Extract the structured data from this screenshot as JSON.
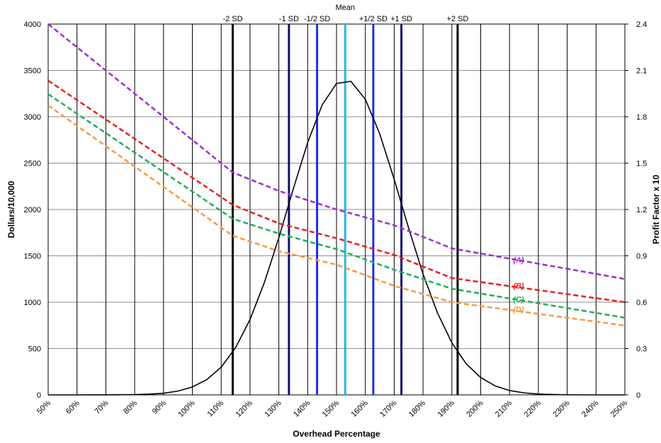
{
  "chart_data": {
    "type": "line",
    "x_label": "Overhead Percentage",
    "y_label": "Dollars/10,000",
    "y2_label": "Profit Factor x 10",
    "xlim": [
      50,
      250
    ],
    "xticks": [
      {
        "value": 50,
        "label": "50%"
      },
      {
        "value": 60,
        "label": "60%"
      },
      {
        "value": 70,
        "label": "70%"
      },
      {
        "value": 80,
        "label": "80%"
      },
      {
        "value": 90,
        "label": "90%"
      },
      {
        "value": 100,
        "label": "100%"
      },
      {
        "value": 110,
        "label": "110%"
      },
      {
        "value": 120,
        "label": "120%"
      },
      {
        "value": 130,
        "label": "130%"
      },
      {
        "value": 140,
        "label": "140%"
      },
      {
        "value": 150,
        "label": "150%"
      },
      {
        "value": 160,
        "label": "160%"
      },
      {
        "value": 170,
        "label": "170%"
      },
      {
        "value": 180,
        "label": "180%"
      },
      {
        "value": 190,
        "label": "190%"
      },
      {
        "value": 200,
        "label": "200%"
      },
      {
        "value": 210,
        "label": "210%"
      },
      {
        "value": 220,
        "label": "220%"
      },
      {
        "value": 230,
        "label": "230%"
      },
      {
        "value": 240,
        "label": "240%"
      },
      {
        "value": 250,
        "label": "250%"
      }
    ],
    "ylim": [
      0,
      4000
    ],
    "yticks": [
      0,
      500,
      1000,
      1500,
      2000,
      2500,
      3000,
      3500,
      4000
    ],
    "y2lim": [
      0,
      2.4
    ],
    "y2ticks": [
      0,
      0.3,
      0.6,
      0.9,
      1.2,
      1.5,
      1.8,
      2.1,
      2.4
    ],
    "grid": true,
    "ref_lines": [
      {
        "label": "-2 SD",
        "x": 114,
        "color": "#000000"
      },
      {
        "label": "-1 SD",
        "x": 133.5,
        "color": "#10106a"
      },
      {
        "label": "-1/2 SD",
        "x": 143.25,
        "color": "#1f2fe0"
      },
      {
        "label": "Mean",
        "x": 153,
        "color": "#27b3e6"
      },
      {
        "label": "+1/2 SD",
        "x": 162.75,
        "color": "#1f2fe0"
      },
      {
        "label": "+1 SD",
        "x": 172.5,
        "color": "#10106a"
      },
      {
        "label": "+2 SD",
        "x": 192,
        "color": "#000000"
      }
    ],
    "series": [
      {
        "color": "#000000",
        "dashed": false,
        "x": [
          50,
          60,
          70,
          80,
          85,
          90,
          95,
          100,
          105,
          110,
          115,
          120,
          125,
          130,
          135,
          140,
          145,
          150,
          155,
          160,
          165,
          170,
          175,
          180,
          185,
          190,
          195,
          200,
          205,
          210,
          215,
          220,
          225,
          230,
          240,
          250
        ],
        "values": [
          0,
          0,
          0.4,
          3,
          8,
          18,
          41,
          85,
          164,
          299,
          510,
          813,
          1214,
          1696,
          2221,
          2723,
          3126,
          3360,
          3382,
          3188,
          2814,
          2325,
          1800,
          1304,
          885,
          562,
          334,
          187,
          97,
          47,
          22,
          9,
          4,
          1,
          0,
          0
        ]
      },
      {
        "name": "(A)",
        "color": "#9b30d0",
        "dashed": true,
        "x": [
          50,
          114,
          130,
          150,
          170,
          190,
          250
        ],
        "values": [
          4000,
          2400,
          2200,
          2000,
          1830,
          1580,
          1250
        ]
      },
      {
        "name": "(B)",
        "color": "#e8201c",
        "dashed": true,
        "x": [
          50,
          114,
          130,
          150,
          170,
          190,
          250
        ],
        "values": [
          3390,
          2050,
          1850,
          1690,
          1510,
          1260,
          1000
        ]
      },
      {
        "name": "(C)",
        "color": "#1fae5a",
        "dashed": true,
        "x": [
          50,
          114,
          130,
          150,
          170,
          190,
          250
        ],
        "values": [
          3244,
          1900,
          1740,
          1572,
          1350,
          1145,
          832
        ]
      },
      {
        "name": "(D)",
        "color": "#f59a45",
        "dashed": true,
        "x": [
          50,
          114,
          130,
          150,
          170,
          190,
          250
        ],
        "values": [
          3122,
          1717,
          1550,
          1405,
          1176,
          1000,
          748
        ]
      }
    ]
  }
}
